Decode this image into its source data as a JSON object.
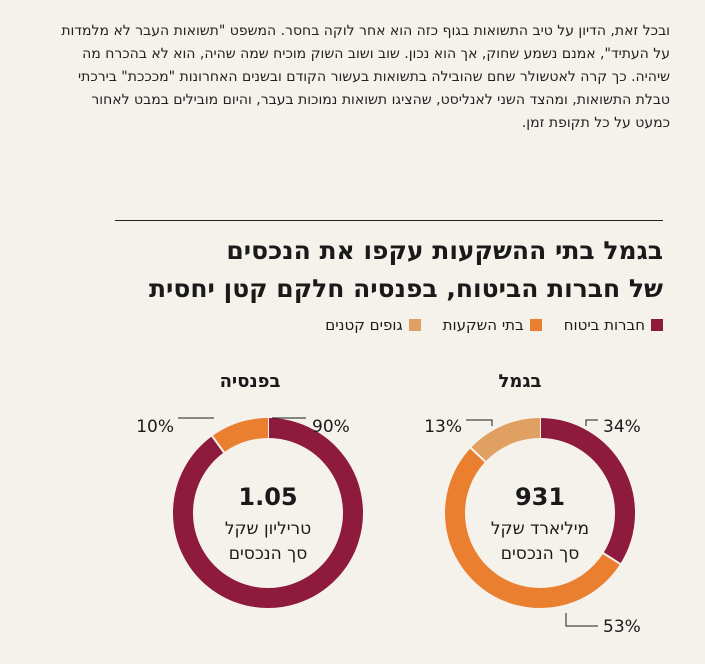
{
  "article": {
    "paragraph": "ובכל זאת, הדיון על טיב התשואות בגוף כזה הוא אחר לוקה בחסר. המשפט \"תשואות העבר לא מלמדות על העתיד\", אמנם נשמע שחוק, אך הוא נכון. שוב ושוב השוק מוכיח שמה שהיה, הוא לא בהכרח מה שיהיה. כך קרה לאטשולר שחם שהובילה בתשואות בעשור הקודם ובשנים האחרונות \"מכככת\" בירכתי טבלת התשואות, ומהצד השני לאנליסט, שהציגו תשואות נמוכות בעבר, והיום מובילים במבט לאחור כמעט על כל תקופת זמן."
  },
  "headline": {
    "line1": "בגמל בתי ההשקעות עקפו את הנכסים",
    "line2": "של חברות הביטוח, בפנסיה חלקם קטן יחסית"
  },
  "colors": {
    "insurance": "#8e1a3e",
    "investment": "#ea7f2f",
    "small": "#e0a061"
  },
  "chart_data": [
    {
      "type": "pie",
      "title": "בגמל",
      "categories": [
        "חברות ביטוח",
        "בתי השקעות",
        "גופים קטנים"
      ],
      "values": [
        34,
        53,
        13
      ],
      "labels": [
        "34%",
        "53%",
        "13%"
      ],
      "center_value": "931",
      "center_line1": "מיליארד שקל",
      "center_line2": "סך הנכסים"
    },
    {
      "type": "pie",
      "title": "בפנסיה",
      "categories": [
        "חברות ביטוח",
        "בתי השקעות"
      ],
      "values": [
        90,
        10
      ],
      "labels": [
        "90%",
        "10%"
      ],
      "center_value": "1.05",
      "center_line1": "טריליון שקל",
      "center_line2": "סך הנכסים"
    }
  ],
  "legend": [
    "חברות ביטוח",
    "בתי השקעות",
    "גופים קטנים"
  ]
}
